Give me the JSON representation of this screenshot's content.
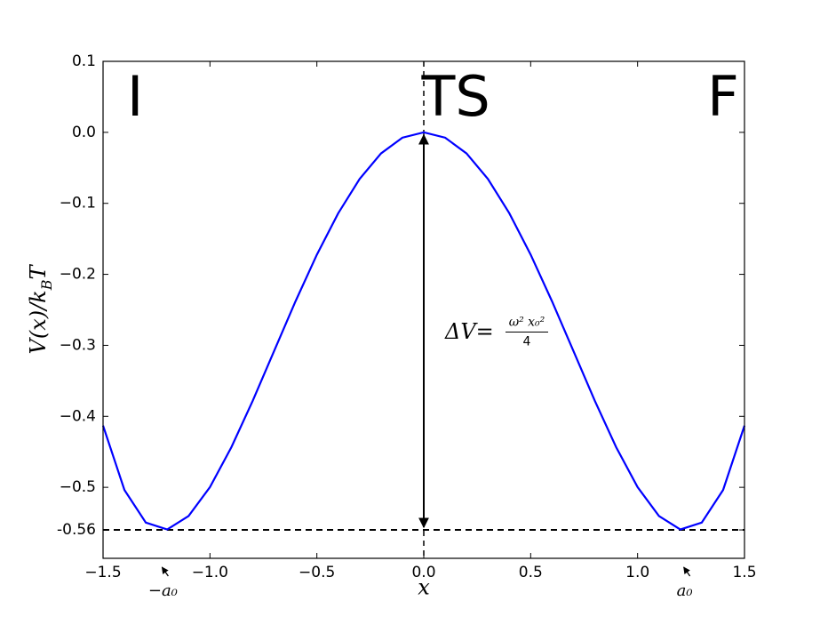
{
  "chart_data": {
    "type": "line",
    "x": [
      -1.5,
      -1.4,
      -1.3,
      -1.2,
      -1.1,
      -1.0,
      -0.9,
      -0.8,
      -0.7,
      -0.6,
      -0.5,
      -0.4,
      -0.3,
      -0.2,
      -0.1,
      0,
      0.1,
      0.2,
      0.3,
      0.4,
      0.5,
      0.6,
      0.7,
      0.8,
      0.9,
      1.0,
      1.1,
      1.2,
      1.3,
      1.4,
      1.5
    ],
    "series": [
      {
        "color": "#0000ff",
        "values": [
          -0.4131,
          -0.5037,
          -0.5497,
          -0.5594,
          -0.5404,
          -0.4997,
          -0.4436,
          -0.3781,
          -0.308,
          -0.2381,
          -0.1723,
          -0.1139,
          -0.0657,
          -0.0297,
          -0.0075,
          0,
          -0.0075,
          -0.0297,
          -0.0657,
          -0.1139,
          -0.1723,
          -0.2381,
          -0.308,
          -0.3781,
          -0.4436,
          -0.4997,
          -0.5404,
          -0.5594,
          -0.5497,
          -0.5037,
          -0.4131
        ]
      }
    ],
    "xlim": [
      -1.5,
      1.5
    ],
    "xticks": [
      {
        "value": -1.5,
        "label": "−1.5"
      },
      {
        "value": -1.0,
        "label": "−1.0"
      },
      {
        "value": -0.5,
        "label": "−0.5"
      },
      {
        "value": 0,
        "label": "0.0"
      },
      {
        "value": 0.5,
        "label": "0.5"
      },
      {
        "value": 1.0,
        "label": "1.0"
      },
      {
        "value": 1.5,
        "label": "1.5"
      }
    ],
    "ylim": [
      -0.6,
      0.1
    ],
    "yticks": [
      0.1,
      {
        "value": 0,
        "label": "0.0"
      },
      {
        "value": -0.1,
        "label": "−0.1"
      },
      {
        "value": -0.2,
        "label": "−0.2"
      },
      {
        "value": -0.3,
        "label": "−0.3"
      },
      {
        "value": -0.4,
        "label": "−0.4"
      },
      {
        "value": -0.5,
        "label": "−0.5"
      },
      -0.56
    ],
    "xlabel": "x",
    "ylabel": [
      "V(x)/k",
      "B",
      "T"
    ],
    "vline": 0,
    "hline": -0.56,
    "regions": [
      {
        "text": "I",
        "x": -1.35
      },
      {
        "text": "TS",
        "x": 0.15
      },
      {
        "text": "F",
        "x": 1.4
      }
    ],
    "minima": [
      {
        "text": "−a₀",
        "x": -1.22
      },
      {
        "text": "a₀",
        "x": 1.22
      }
    ],
    "delta_v": {
      "lhs": "ΔV=",
      "numerator": "ω² x₀²",
      "denominator": "4"
    }
  }
}
